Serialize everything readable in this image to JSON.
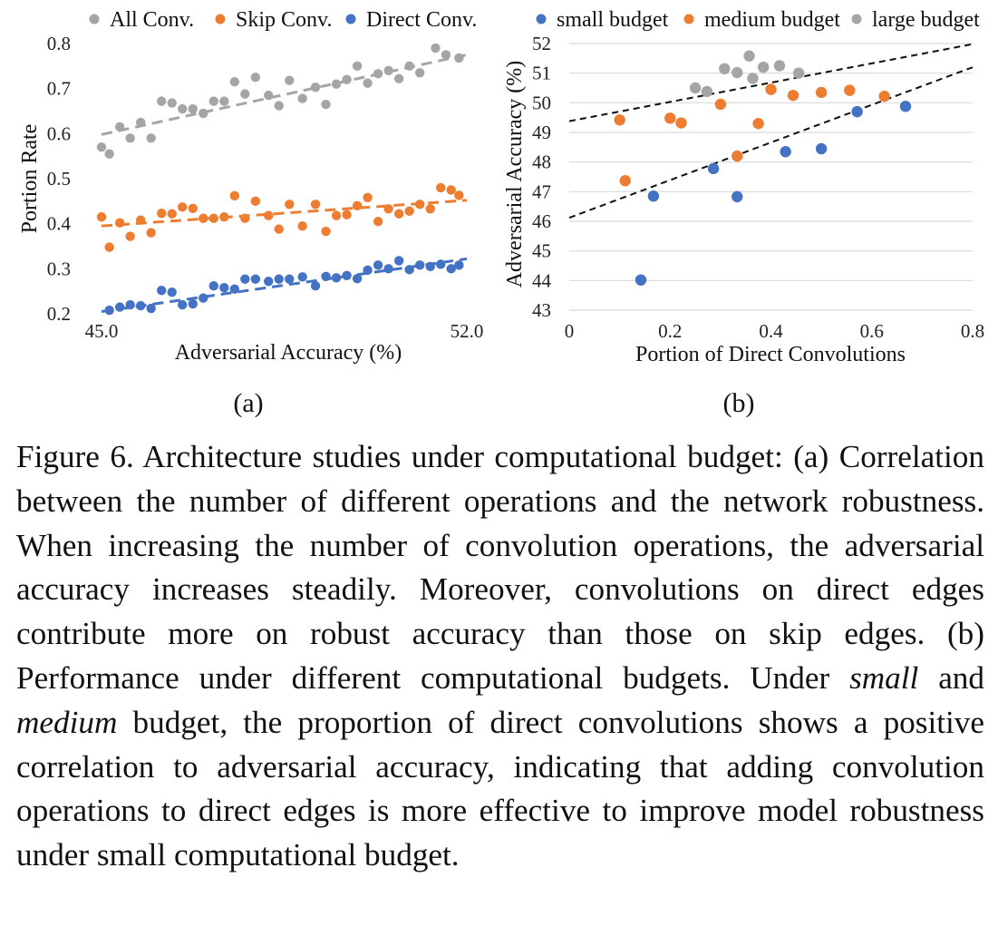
{
  "figure": {
    "panel_a_label": "(a)",
    "panel_b_label": "(b)"
  },
  "caption": {
    "p1": "Figure 6. Architecture studies under computational budget: (a) Correlation between the number of different operations and the network robustness. When increasing the number of convolution operations, the adversarial accuracy increases steadily. Moreover, convolutions on direct edges contribute more on robust accuracy than those on skip edges. (b) Performance under different computational budgets. Under ",
    "em1": "small",
    "p2": " and ",
    "em2": "medium",
    "p3": " budget, the proportion of direct convolutions shows a positive correlation to adversarial accuracy, indicating that adding convolution operations to direct edges is more effective to improve model robustness under small computational budget."
  },
  "chart_data": [
    {
      "type": "scatter",
      "panel": "(a)",
      "xlabel": "Adversarial Accuracy (%)",
      "ylabel": "Portion Rate",
      "xlim": [
        45.0,
        52.0
      ],
      "ylim": [
        0.2,
        0.8
      ],
      "x_tick_labels": [
        "45.0",
        "52.0"
      ],
      "y_tick_labels": [
        "0.2",
        "0.3",
        "0.4",
        "0.5",
        "0.6",
        "0.7",
        "0.8"
      ],
      "legend_position": "top",
      "trendlines": true,
      "series": [
        {
          "name": "All Conv.",
          "color": "#a5a5a5",
          "points": [
            [
              45.0,
              0.57
            ],
            [
              45.15,
              0.555
            ],
            [
              45.35,
              0.615
            ],
            [
              45.55,
              0.59
            ],
            [
              45.75,
              0.625
            ],
            [
              45.95,
              0.59
            ],
            [
              46.15,
              0.672
            ],
            [
              46.35,
              0.668
            ],
            [
              46.55,
              0.655
            ],
            [
              46.75,
              0.655
            ],
            [
              46.95,
              0.645
            ],
            [
              47.15,
              0.672
            ],
            [
              47.35,
              0.672
            ],
            [
              47.55,
              0.715
            ],
            [
              47.75,
              0.688
            ],
            [
              47.95,
              0.725
            ],
            [
              48.2,
              0.685
            ],
            [
              48.4,
              0.662
            ],
            [
              48.6,
              0.718
            ],
            [
              48.85,
              0.678
            ],
            [
              49.1,
              0.703
            ],
            [
              49.3,
              0.665
            ],
            [
              49.5,
              0.71
            ],
            [
              49.7,
              0.72
            ],
            [
              49.9,
              0.75
            ],
            [
              50.1,
              0.712
            ],
            [
              50.3,
              0.733
            ],
            [
              50.5,
              0.74
            ],
            [
              50.7,
              0.722
            ],
            [
              50.9,
              0.75
            ],
            [
              51.1,
              0.735
            ],
            [
              51.4,
              0.79
            ],
            [
              51.6,
              0.775
            ],
            [
              51.85,
              0.768
            ]
          ],
          "trend": [
            [
              45.0,
              0.598
            ],
            [
              52.0,
              0.775
            ]
          ]
        },
        {
          "name": "Skip Conv.",
          "color": "#ed7d31",
          "points": [
            [
              45.0,
              0.415
            ],
            [
              45.15,
              0.348
            ],
            [
              45.35,
              0.402
            ],
            [
              45.55,
              0.372
            ],
            [
              45.75,
              0.408
            ],
            [
              45.95,
              0.38
            ],
            [
              46.15,
              0.423
            ],
            [
              46.35,
              0.422
            ],
            [
              46.55,
              0.437
            ],
            [
              46.75,
              0.434
            ],
            [
              46.95,
              0.412
            ],
            [
              47.15,
              0.412
            ],
            [
              47.35,
              0.415
            ],
            [
              47.55,
              0.462
            ],
            [
              47.75,
              0.412
            ],
            [
              47.95,
              0.45
            ],
            [
              48.2,
              0.418
            ],
            [
              48.4,
              0.388
            ],
            [
              48.6,
              0.443
            ],
            [
              48.85,
              0.395
            ],
            [
              49.1,
              0.443
            ],
            [
              49.3,
              0.383
            ],
            [
              49.5,
              0.418
            ],
            [
              49.7,
              0.42
            ],
            [
              49.9,
              0.44
            ],
            [
              50.1,
              0.458
            ],
            [
              50.3,
              0.405
            ],
            [
              50.5,
              0.433
            ],
            [
              50.7,
              0.422
            ],
            [
              50.9,
              0.428
            ],
            [
              51.1,
              0.443
            ],
            [
              51.3,
              0.433
            ],
            [
              51.5,
              0.48
            ],
            [
              51.7,
              0.475
            ],
            [
              51.85,
              0.463
            ]
          ],
          "trend": [
            [
              45.0,
              0.395
            ],
            [
              52.0,
              0.452
            ]
          ]
        },
        {
          "name": "Direct Conv.",
          "color": "#4472c4",
          "points": [
            [
              45.15,
              0.208
            ],
            [
              45.35,
              0.215
            ],
            [
              45.55,
              0.22
            ],
            [
              45.75,
              0.218
            ],
            [
              45.95,
              0.212
            ],
            [
              46.15,
              0.252
            ],
            [
              46.35,
              0.248
            ],
            [
              46.55,
              0.22
            ],
            [
              46.75,
              0.222
            ],
            [
              46.95,
              0.235
            ],
            [
              47.15,
              0.262
            ],
            [
              47.35,
              0.258
            ],
            [
              47.55,
              0.255
            ],
            [
              47.75,
              0.277
            ],
            [
              47.95,
              0.277
            ],
            [
              48.2,
              0.272
            ],
            [
              48.4,
              0.277
            ],
            [
              48.6,
              0.277
            ],
            [
              48.85,
              0.282
            ],
            [
              49.1,
              0.262
            ],
            [
              49.3,
              0.283
            ],
            [
              49.5,
              0.28
            ],
            [
              49.7,
              0.285
            ],
            [
              49.9,
              0.278
            ],
            [
              50.1,
              0.297
            ],
            [
              50.3,
              0.308
            ],
            [
              50.5,
              0.3
            ],
            [
              50.7,
              0.318
            ],
            [
              50.9,
              0.298
            ],
            [
              51.1,
              0.308
            ],
            [
              51.3,
              0.305
            ],
            [
              51.5,
              0.31
            ],
            [
              51.7,
              0.3
            ],
            [
              51.85,
              0.308
            ]
          ],
          "trend": [
            [
              45.0,
              0.205
            ],
            [
              52.0,
              0.322
            ]
          ]
        }
      ]
    },
    {
      "type": "scatter",
      "panel": "(b)",
      "xlabel": "Portion of Direct Convolutions",
      "ylabel": "Adversarial Accuracy (%)",
      "xlim": [
        0,
        0.8
      ],
      "ylim": [
        43,
        52
      ],
      "x_tick_labels": [
        "0",
        "0.2",
        "0.4",
        "0.6",
        "0.8"
      ],
      "y_tick_labels": [
        "43",
        "44",
        "45",
        "46",
        "47",
        "48",
        "49",
        "50",
        "51",
        "52"
      ],
      "grid": true,
      "legend_position": "top",
      "trendlines": true,
      "series": [
        {
          "name": "small budget",
          "color": "#4472c4",
          "points": [
            [
              0.142,
              44.02
            ],
            [
              0.167,
              46.85
            ],
            [
              0.286,
              47.78
            ],
            [
              0.333,
              46.83
            ],
            [
              0.429,
              48.35
            ],
            [
              0.5,
              48.45
            ],
            [
              0.571,
              49.7
            ],
            [
              0.667,
              49.88
            ]
          ]
        },
        {
          "name": "medium budget",
          "color": "#ed7d31",
          "points": [
            [
              0.1,
              49.42
            ],
            [
              0.111,
              47.37
            ],
            [
              0.2,
              49.48
            ],
            [
              0.222,
              49.32
            ],
            [
              0.3,
              49.95
            ],
            [
              0.333,
              48.2
            ],
            [
              0.375,
              49.3
            ],
            [
              0.4,
              50.45
            ],
            [
              0.444,
              50.25
            ],
            [
              0.5,
              50.35
            ],
            [
              0.556,
              50.42
            ],
            [
              0.625,
              50.22
            ]
          ]
        },
        {
          "name": "large budget",
          "color": "#a5a5a5",
          "points": [
            [
              0.25,
              50.5
            ],
            [
              0.273,
              50.38
            ],
            [
              0.308,
              51.15
            ],
            [
              0.333,
              51.02
            ],
            [
              0.357,
              51.58
            ],
            [
              0.364,
              50.82
            ],
            [
              0.385,
              51.2
            ],
            [
              0.417,
              51.25
            ],
            [
              0.455,
              51.0
            ]
          ]
        }
      ],
      "trend_lines": [
        [
          [
            0,
            49.38
          ],
          [
            0.8,
            51.98
          ]
        ],
        [
          [
            0,
            46.12
          ],
          [
            0.8,
            51.2
          ]
        ]
      ]
    }
  ]
}
